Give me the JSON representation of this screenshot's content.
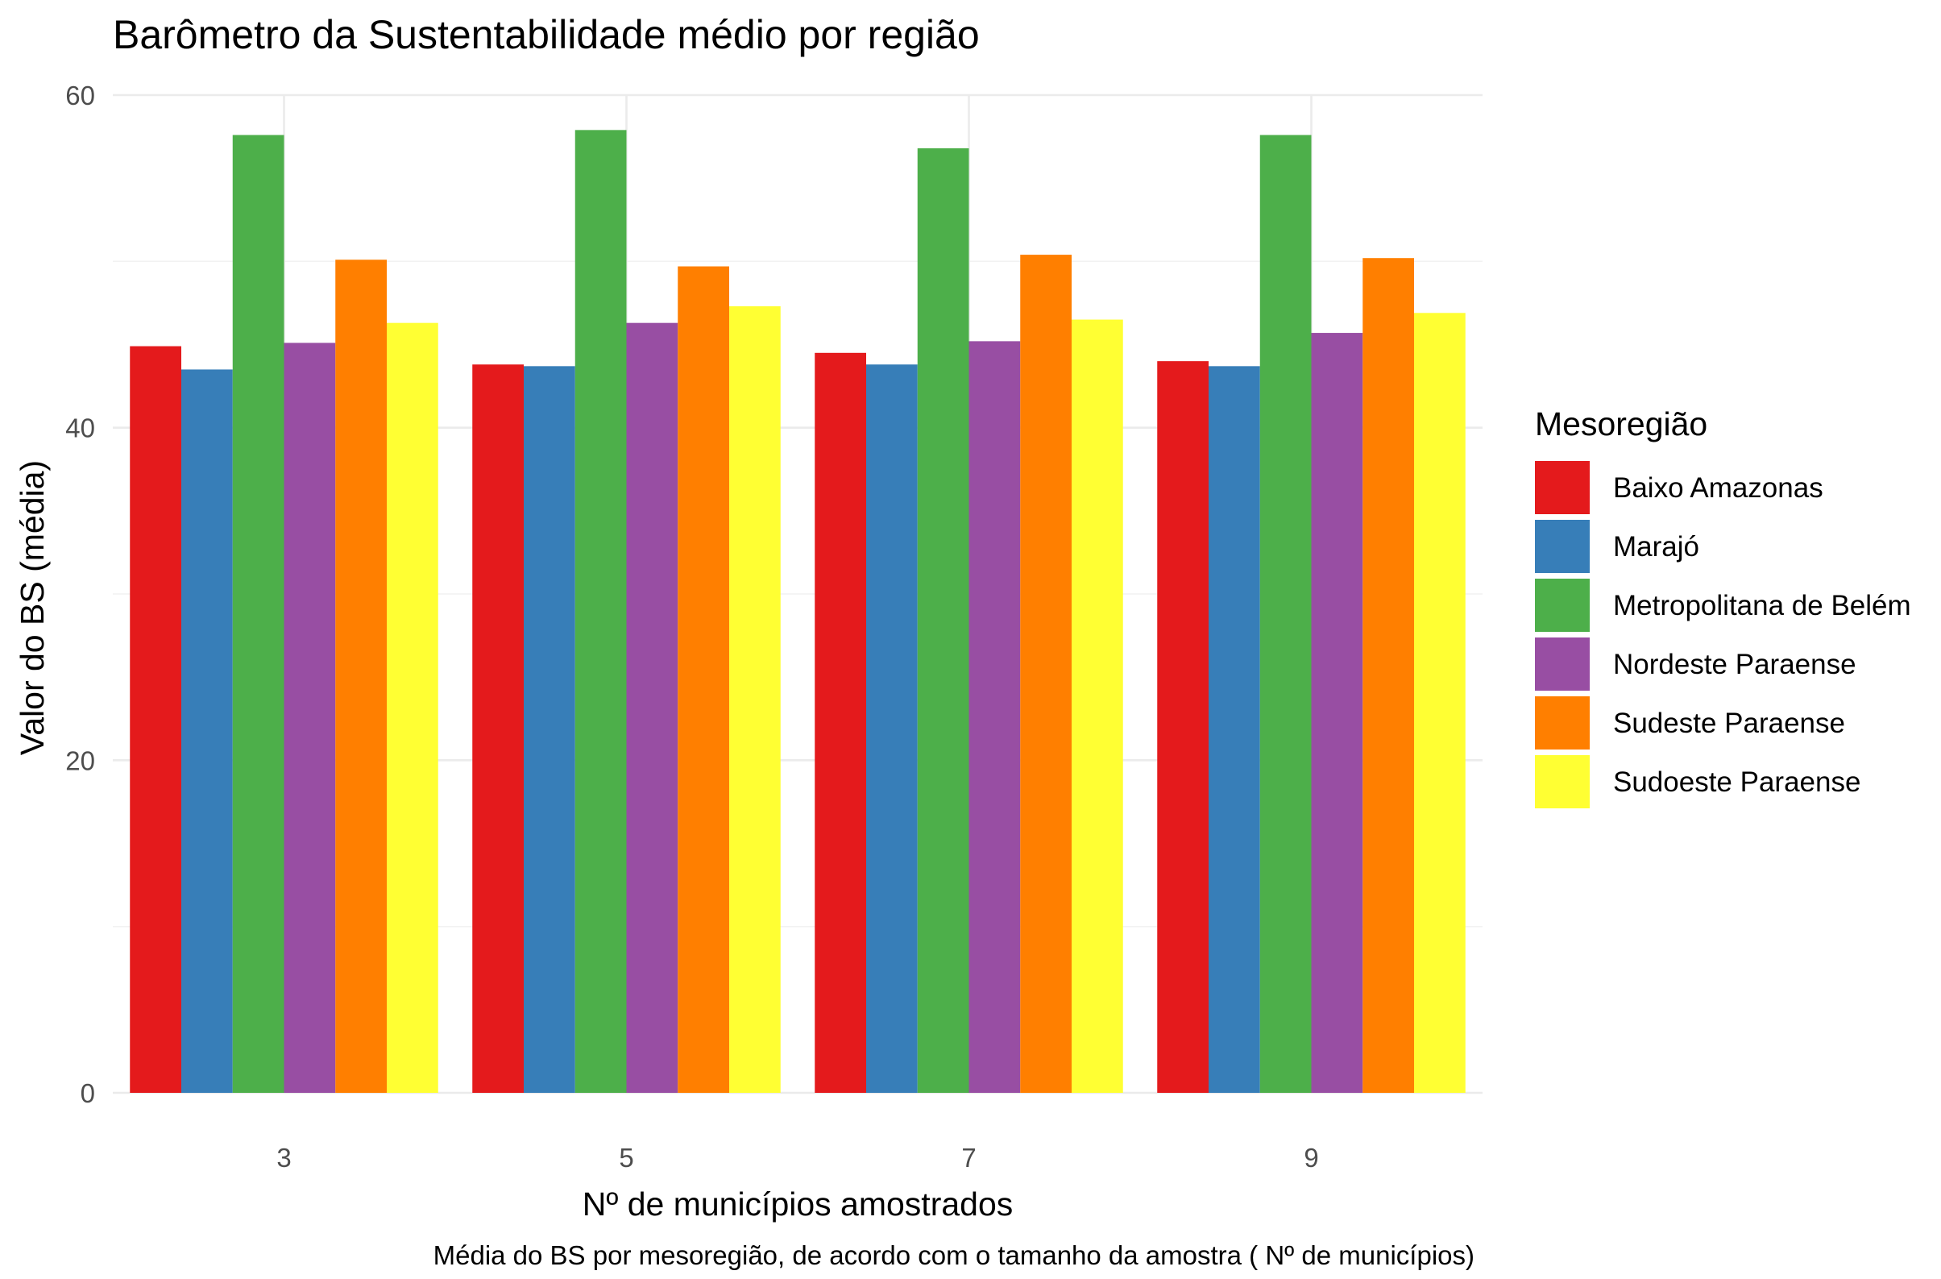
{
  "chart_data": {
    "type": "bar",
    "title": "Barômetro da Sustentabilidade médio por região",
    "xlabel": "Nº de municípios amostrados",
    "ylabel": "Valor do BS (média)",
    "caption": "Média do BS por mesoregião, de acordo com o tamanho da amostra ( Nº de municípios)",
    "categories": [
      "3",
      "5",
      "7",
      "9"
    ],
    "ylim": [
      0,
      60
    ],
    "yticks": [
      "0",
      "20",
      "40",
      "60"
    ],
    "grid": true,
    "legend": {
      "title": "Mesoregião",
      "position": "right"
    },
    "series": [
      {
        "name": "Baixo Amazonas",
        "color": "#E41A1C",
        "values": [
          44.9,
          43.8,
          44.5,
          44.0
        ]
      },
      {
        "name": "Marajó",
        "color": "#377EB8",
        "values": [
          43.5,
          43.7,
          43.8,
          43.7
        ]
      },
      {
        "name": "Metropolitana de Belém",
        "color": "#4DAF4A",
        "values": [
          57.6,
          57.9,
          56.8,
          57.6
        ]
      },
      {
        "name": "Nordeste Paraense",
        "color": "#984EA3",
        "values": [
          45.1,
          46.3,
          45.2,
          45.7
        ]
      },
      {
        "name": "Sudeste Paraense",
        "color": "#FF7F00",
        "values": [
          50.1,
          49.7,
          50.4,
          50.2
        ]
      },
      {
        "name": "Sudoeste Paraense",
        "color": "#FFFF33",
        "values": [
          46.3,
          47.3,
          46.5,
          46.9
        ]
      }
    ]
  }
}
